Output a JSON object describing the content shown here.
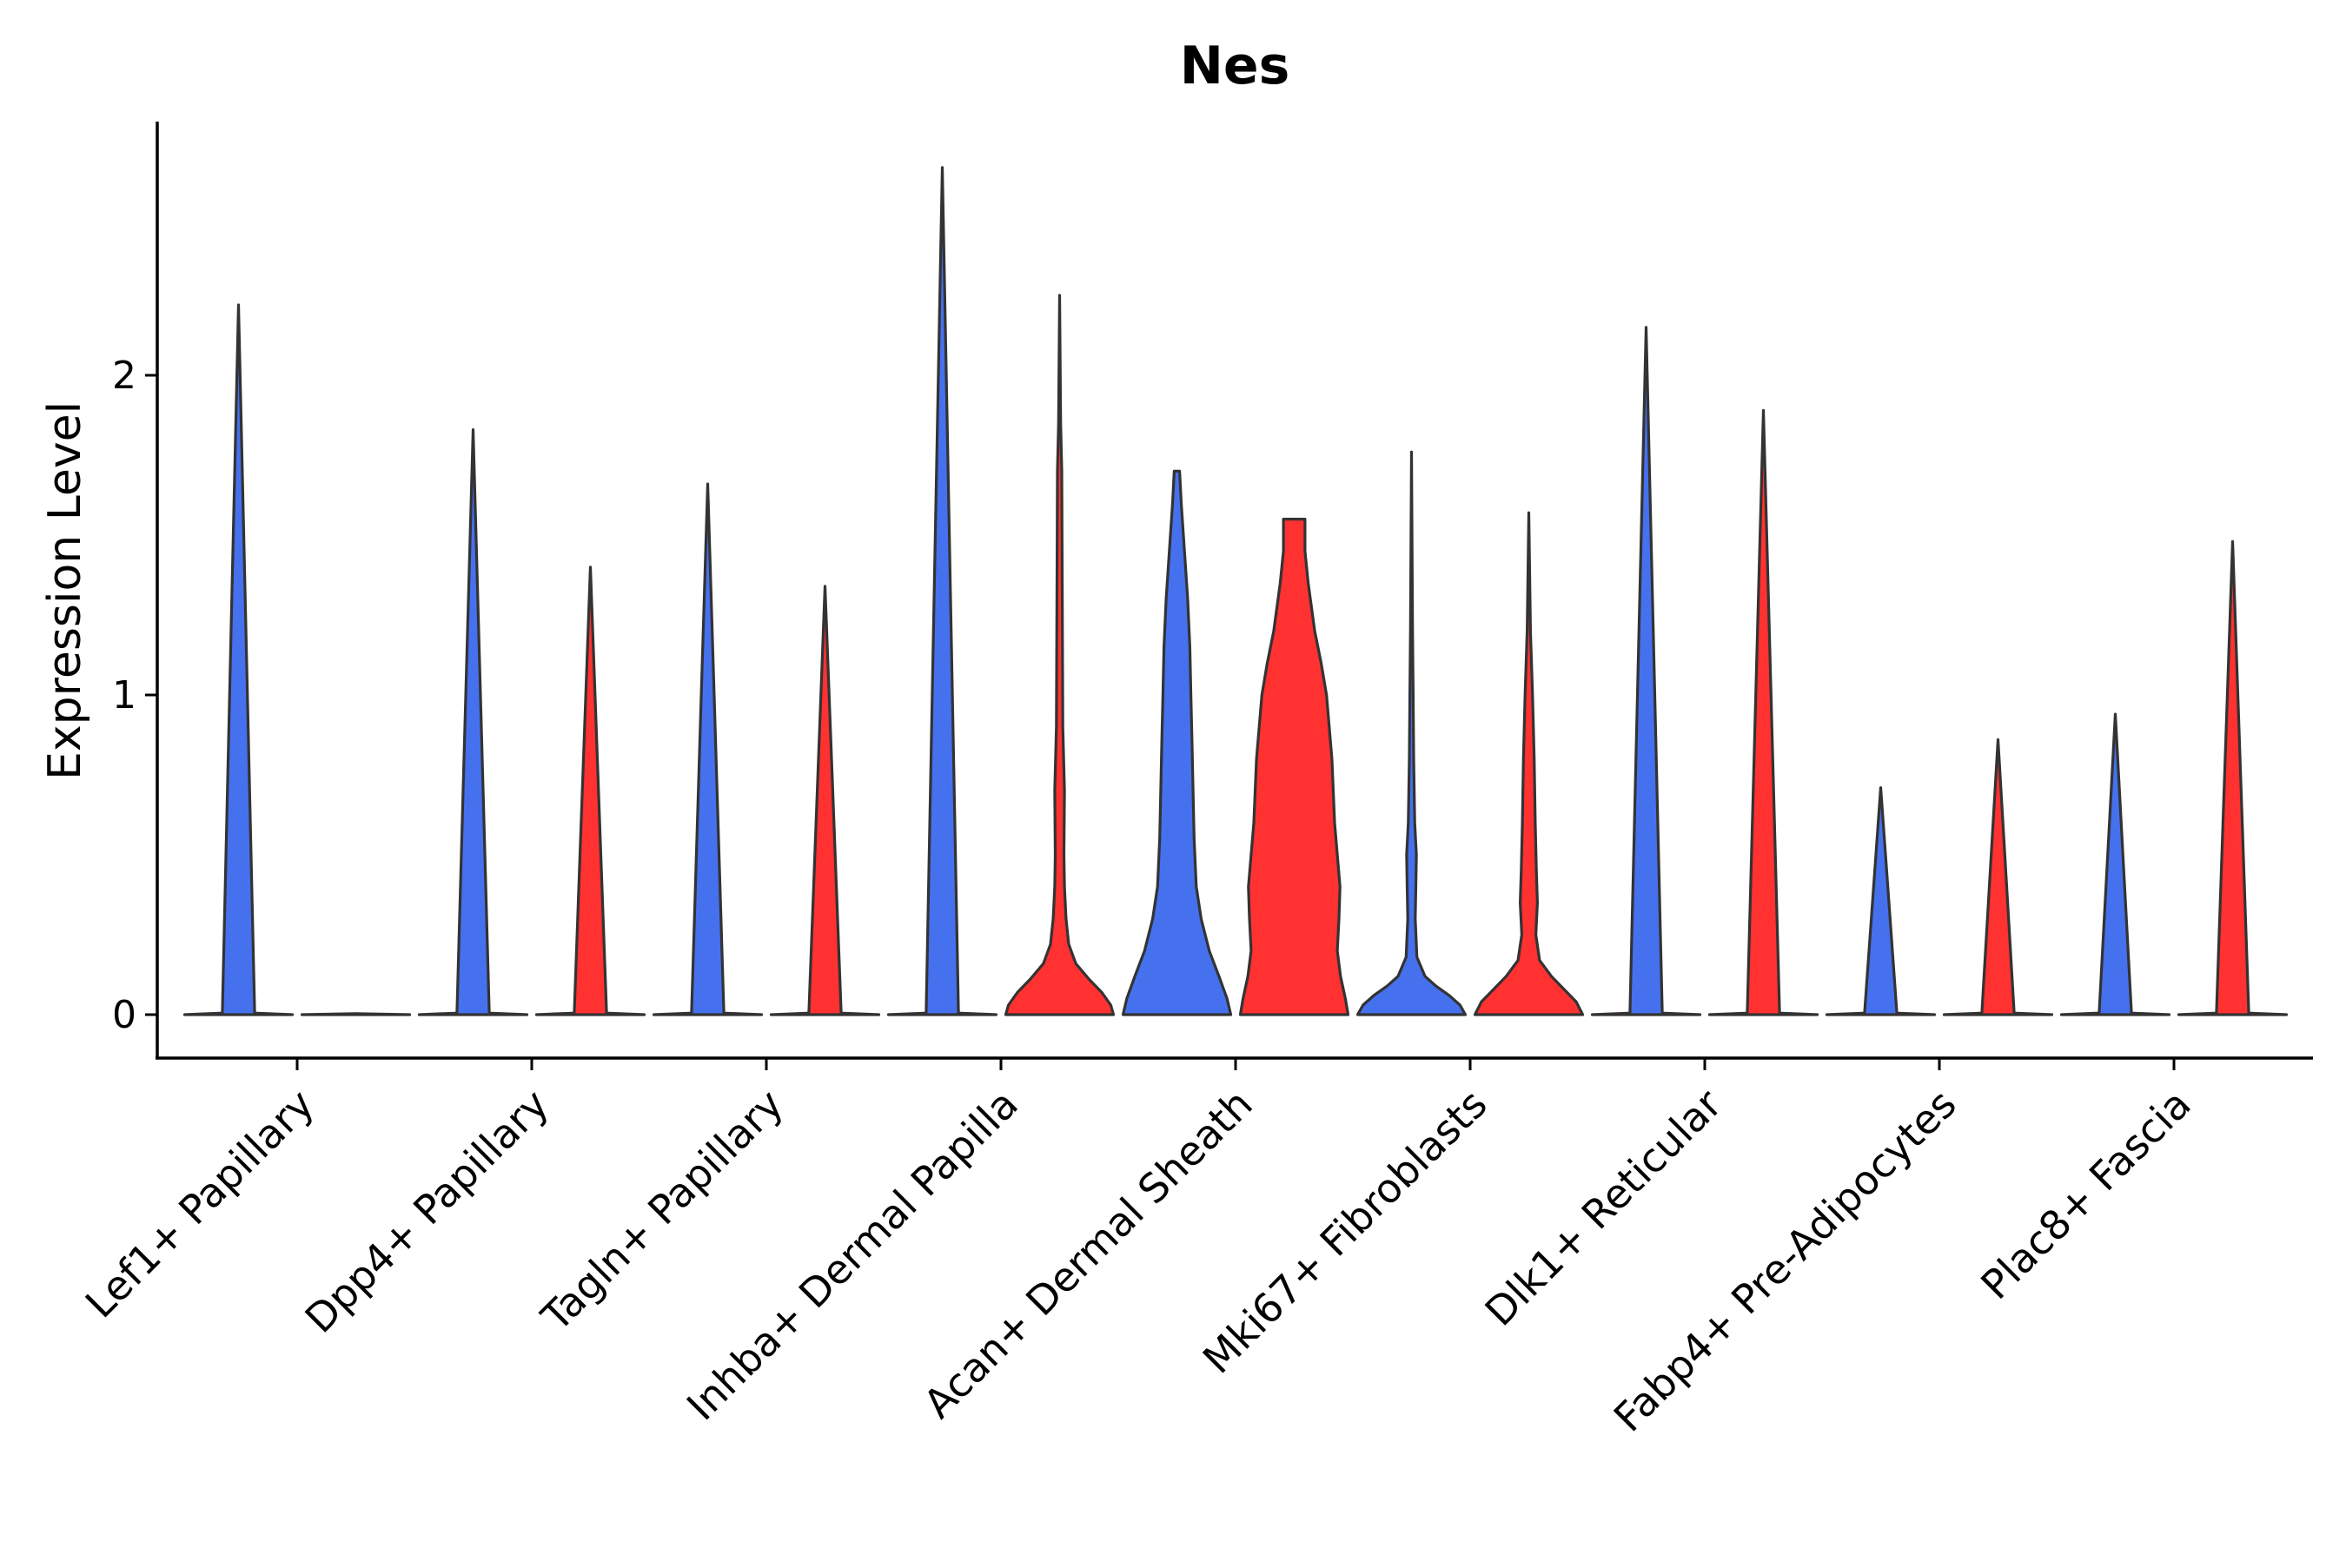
{
  "chart_data": {
    "type": "violin",
    "title": "Nes",
    "xlabel": "",
    "ylabel": "Expression Level",
    "ylim": [
      -0.13,
      2.79
    ],
    "yticks": [
      0,
      1,
      2
    ],
    "ytick_labels": [
      "0",
      "1",
      "2"
    ],
    "grid": false,
    "legend": "none",
    "colors": {
      "blue": "#4671EE",
      "red": "#FF3131",
      "outline": "#333333",
      "axis": "#000000"
    },
    "categories": [
      "Lef1+ Papillary",
      "Dpp4+ Papillary",
      "Tagln+ Papillary",
      "Inhba+ Dermal Papilla",
      "Acan+ Dermal Sheath",
      "Mki67+ Fibroblasts",
      "Dlk1+ Reticular",
      "Fabp4+ Pre-Adipocytes",
      "Plac8+ Fascia"
    ],
    "violins": [
      {
        "category": "Lef1+ Papillary",
        "group": "blue",
        "max": 2.22,
        "profile": [
          [
            0,
            1.0
          ],
          [
            0.005,
            0.3
          ],
          [
            2.22,
            0.0
          ]
        ]
      },
      {
        "category": "Lef1+ Papillary",
        "group": "red",
        "max": 0.003,
        "profile": [
          [
            0,
            1.0
          ],
          [
            0.003,
            0.0
          ]
        ]
      },
      {
        "category": "Dpp4+ Papillary",
        "group": "blue",
        "max": 1.83,
        "profile": [
          [
            0,
            1.0
          ],
          [
            0.005,
            0.3
          ],
          [
            1.83,
            0.0
          ]
        ]
      },
      {
        "category": "Dpp4+ Papillary",
        "group": "red",
        "max": 1.4,
        "profile": [
          [
            0,
            1.0
          ],
          [
            0.005,
            0.3
          ],
          [
            1.4,
            0.0
          ]
        ]
      },
      {
        "category": "Tagln+ Papillary",
        "group": "blue",
        "max": 1.66,
        "profile": [
          [
            0,
            1.0
          ],
          [
            0.005,
            0.3
          ],
          [
            1.66,
            0.0
          ]
        ]
      },
      {
        "category": "Tagln+ Papillary",
        "group": "red",
        "max": 1.34,
        "profile": [
          [
            0,
            1.0
          ],
          [
            0.005,
            0.3
          ],
          [
            1.34,
            0.0
          ]
        ]
      },
      {
        "category": "Inhba+ Dermal Papilla",
        "group": "blue",
        "max": 2.65,
        "profile": [
          [
            0,
            1.0
          ],
          [
            0.005,
            0.3
          ],
          [
            2.65,
            0.0
          ]
        ]
      },
      {
        "category": "Inhba+ Dermal Papilla",
        "group": "red",
        "max": 2.25,
        "profile": [
          [
            0,
            1.0
          ],
          [
            0.03,
            0.95
          ],
          [
            0.07,
            0.78
          ],
          [
            0.11,
            0.55
          ],
          [
            0.16,
            0.3
          ],
          [
            0.22,
            0.17
          ],
          [
            0.3,
            0.12
          ],
          [
            0.4,
            0.09
          ],
          [
            0.5,
            0.08
          ],
          [
            0.7,
            0.09
          ],
          [
            0.9,
            0.06
          ],
          [
            1.3,
            0.05
          ],
          [
            1.7,
            0.04
          ],
          [
            1.85,
            0.02
          ],
          [
            2.25,
            0.0
          ]
        ]
      },
      {
        "category": "Acan+ Dermal Sheath",
        "group": "blue",
        "max": 1.7,
        "profile": [
          [
            0,
            1.0
          ],
          [
            0.05,
            0.93
          ],
          [
            0.12,
            0.78
          ],
          [
            0.2,
            0.6
          ],
          [
            0.3,
            0.45
          ],
          [
            0.4,
            0.36
          ],
          [
            0.55,
            0.32
          ],
          [
            0.7,
            0.3
          ],
          [
            0.85,
            0.28
          ],
          [
            1.0,
            0.26
          ],
          [
            1.15,
            0.24
          ],
          [
            1.3,
            0.2
          ],
          [
            1.45,
            0.14
          ],
          [
            1.6,
            0.08
          ],
          [
            1.7,
            0.05
          ]
        ]
      },
      {
        "category": "Acan+ Dermal Sheath",
        "group": "red",
        "max": 1.55,
        "profile": [
          [
            0,
            1.0
          ],
          [
            0.05,
            0.95
          ],
          [
            0.12,
            0.86
          ],
          [
            0.2,
            0.8
          ],
          [
            0.3,
            0.83
          ],
          [
            0.4,
            0.85
          ],
          [
            0.5,
            0.8
          ],
          [
            0.6,
            0.75
          ],
          [
            0.8,
            0.7
          ],
          [
            1.0,
            0.6
          ],
          [
            1.1,
            0.5
          ],
          [
            1.2,
            0.38
          ],
          [
            1.35,
            0.26
          ],
          [
            1.45,
            0.2
          ],
          [
            1.55,
            0.2
          ]
        ]
      },
      {
        "category": "Mki67+ Fibroblasts",
        "group": "blue",
        "max": 1.76,
        "profile": [
          [
            0,
            1.0
          ],
          [
            0.03,
            0.9
          ],
          [
            0.06,
            0.7
          ],
          [
            0.09,
            0.45
          ],
          [
            0.12,
            0.25
          ],
          [
            0.18,
            0.1
          ],
          [
            0.3,
            0.07
          ],
          [
            0.4,
            0.08
          ],
          [
            0.5,
            0.09
          ],
          [
            0.6,
            0.06
          ],
          [
            0.8,
            0.04
          ],
          [
            1.0,
            0.03
          ],
          [
            1.2,
            0.02
          ],
          [
            1.76,
            0.0
          ]
        ]
      },
      {
        "category": "Mki67+ Fibroblasts",
        "group": "red",
        "max": 1.57,
        "profile": [
          [
            0,
            1.0
          ],
          [
            0.04,
            0.88
          ],
          [
            0.08,
            0.65
          ],
          [
            0.12,
            0.42
          ],
          [
            0.17,
            0.2
          ],
          [
            0.25,
            0.13
          ],
          [
            0.35,
            0.16
          ],
          [
            0.45,
            0.14
          ],
          [
            0.6,
            0.12
          ],
          [
            0.8,
            0.1
          ],
          [
            1.0,
            0.07
          ],
          [
            1.2,
            0.03
          ],
          [
            1.57,
            0.0
          ]
        ]
      },
      {
        "category": "Dlk1+ Reticular",
        "group": "blue",
        "max": 2.15,
        "profile": [
          [
            0,
            1.0
          ],
          [
            0.005,
            0.3
          ],
          [
            2.15,
            0.0
          ]
        ]
      },
      {
        "category": "Dlk1+ Reticular",
        "group": "red",
        "max": 1.89,
        "profile": [
          [
            0,
            1.0
          ],
          [
            0.005,
            0.3
          ],
          [
            1.89,
            0.0
          ]
        ]
      },
      {
        "category": "Fabp4+ Pre-Adipocytes",
        "group": "blue",
        "max": 0.71,
        "profile": [
          [
            0,
            1.0
          ],
          [
            0.005,
            0.3
          ],
          [
            0.71,
            0.0
          ]
        ]
      },
      {
        "category": "Fabp4+ Pre-Adipocytes",
        "group": "red",
        "max": 0.86,
        "profile": [
          [
            0,
            1.0
          ],
          [
            0.005,
            0.3
          ],
          [
            0.86,
            0.0
          ]
        ]
      },
      {
        "category": "Plac8+ Fascia",
        "group": "blue",
        "max": 0.94,
        "profile": [
          [
            0,
            1.0
          ],
          [
            0.005,
            0.3
          ],
          [
            0.94,
            0.0
          ]
        ]
      },
      {
        "category": "Plac8+ Fascia",
        "group": "red",
        "max": 1.48,
        "profile": [
          [
            0,
            1.0
          ],
          [
            0.005,
            0.3
          ],
          [
            1.48,
            0.0
          ]
        ]
      }
    ]
  }
}
